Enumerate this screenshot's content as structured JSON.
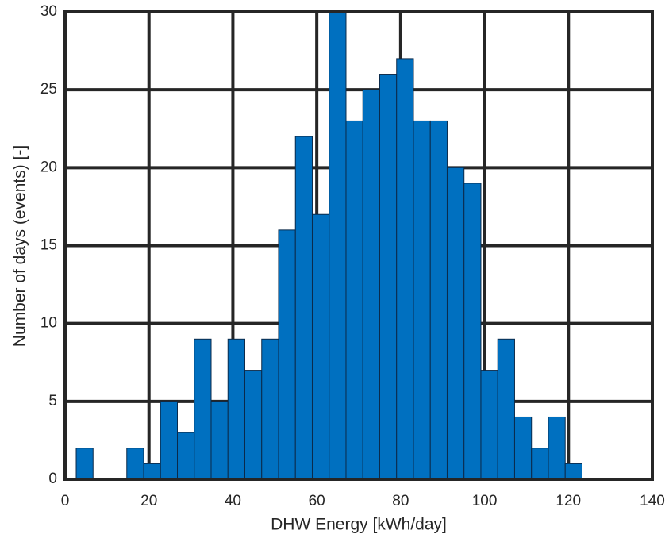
{
  "chart_data": {
    "type": "histogram",
    "xlabel": "DHW Energy [kWh/day]",
    "ylabel": "Number of days (events) [-]",
    "bins": [
      2.65,
      6.67,
      10.69,
      14.71,
      18.73,
      22.75,
      26.77,
      30.79,
      34.81,
      38.83,
      42.85,
      46.87,
      50.89,
      54.91,
      58.93,
      62.95,
      66.97,
      70.99,
      75.01,
      79.03,
      83.05,
      87.07,
      91.09,
      95.11,
      99.13,
      103.15,
      107.17,
      111.19,
      115.21,
      119.23,
      123.25
    ],
    "counts": [
      2,
      0,
      0,
      2,
      1,
      5,
      3,
      9,
      5,
      9,
      7,
      9,
      16,
      22,
      17,
      30,
      23,
      25,
      26,
      27,
      23,
      23,
      20,
      19,
      7,
      9,
      4,
      2,
      4,
      1
    ],
    "color": "#0070c0",
    "xlim": [
      0,
      140
    ],
    "xticks": [
      0,
      20,
      40,
      60,
      80,
      100,
      120,
      140
    ],
    "ylim": [
      0,
      30
    ],
    "yticks": [
      0,
      5,
      10,
      15,
      20,
      25,
      30
    ],
    "grid": true
  }
}
